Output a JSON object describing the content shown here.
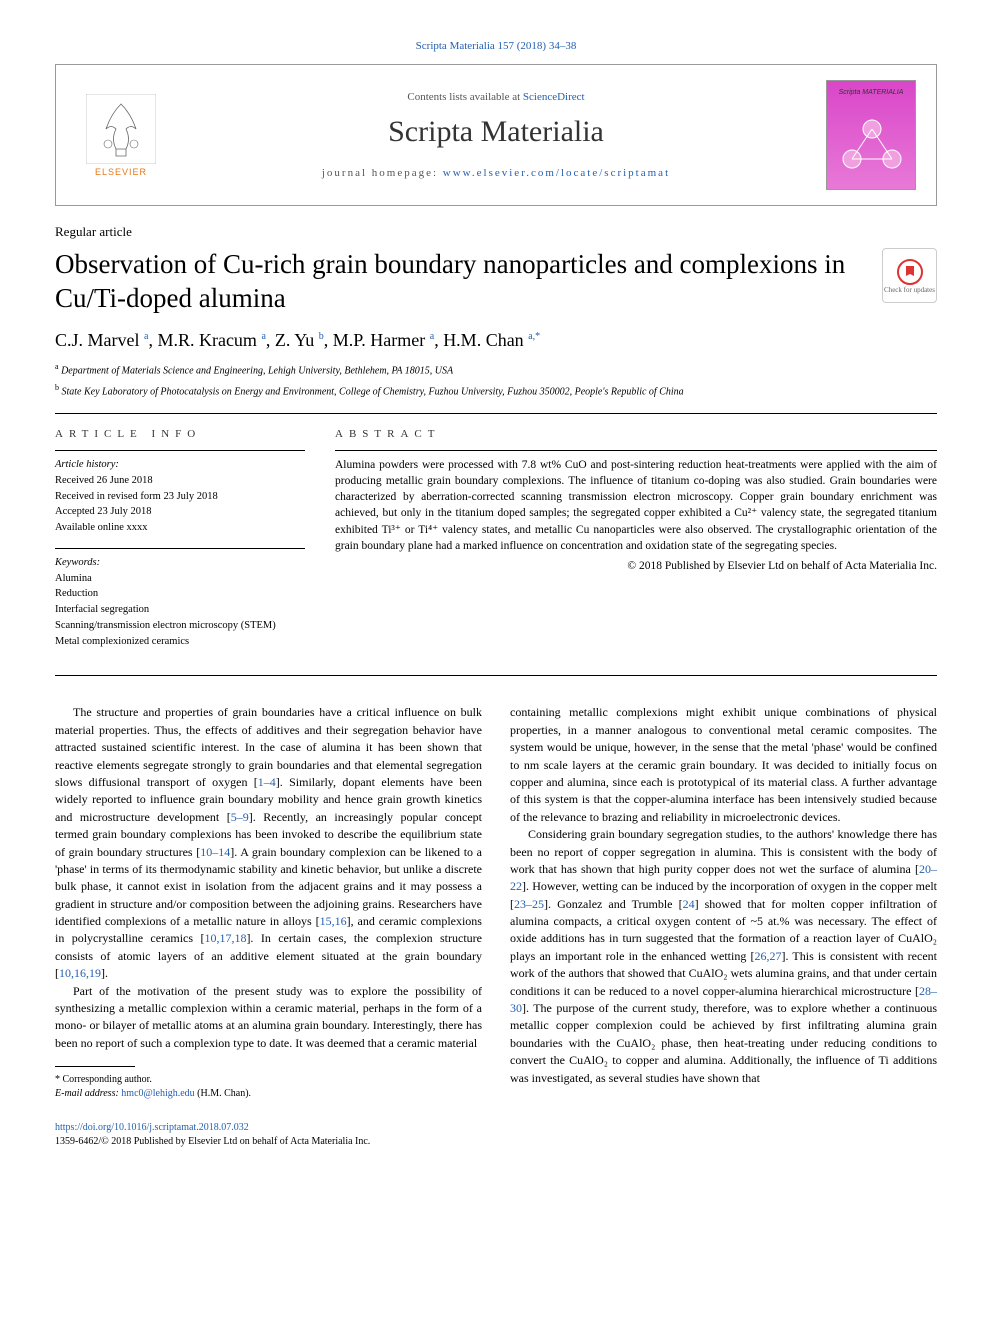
{
  "header": {
    "citation": "Scripta Materialia 157 (2018) 34–38",
    "contents_prefix": "Contents lists available at ",
    "contents_link": "ScienceDirect",
    "journal_name": "Scripta Materialia",
    "homepage_prefix": "journal homepage: ",
    "homepage_link": "www.elsevier.com/locate/scriptamat",
    "publisher_name": "ELSEVIER",
    "cover_title": "Scripta MATERIALIA"
  },
  "article": {
    "type": "Regular article",
    "title": "Observation of Cu-rich grain boundary nanoparticles and complexions in Cu/Ti-doped alumina",
    "updates_text": "Check for updates",
    "authors_html": "C.J. Marvel <sup>a</sup>, M.R. Kracum <sup>a</sup>, Z. Yu <sup>b</sup>, M.P. Harmer <sup>a</sup>, H.M. Chan <sup>a,*</sup>",
    "affiliations": [
      {
        "sup": "a",
        "text": "Department of Materials Science and Engineering, Lehigh University, Bethlehem, PA 18015, USA"
      },
      {
        "sup": "b",
        "text": "State Key Laboratory of Photocatalysis on Energy and Environment, College of Chemistry, Fuzhou University, Fuzhou 350002, People's Republic of China"
      }
    ]
  },
  "info": {
    "heading": "ARTICLE INFO",
    "history_label": "Article history:",
    "history": [
      "Received 26 June 2018",
      "Received in revised form 23 July 2018",
      "Accepted 23 July 2018",
      "Available online xxxx"
    ],
    "keywords_label": "Keywords:",
    "keywords": [
      "Alumina",
      "Reduction",
      "Interfacial segregation",
      "Scanning/transmission electron microscopy (STEM)",
      "Metal complexionized ceramics"
    ]
  },
  "abstract": {
    "heading": "ABSTRACT",
    "text": "Alumina powders were processed with 7.8 wt% CuO and post-sintering reduction heat-treatments were applied with the aim of producing metallic grain boundary complexions. The influence of titanium co-doping was also studied. Grain boundaries were characterized by aberration-corrected scanning transmission electron microscopy. Copper grain boundary enrichment was achieved, but only in the titanium doped samples; the segregated copper exhibited a Cu²⁺ valency state, the segregated titanium exhibited Ti³⁺ or Ti⁴⁺ valency states, and metallic Cu nanoparticles were also observed. The crystallographic orientation of the grain boundary plane had a marked influence on concentration and oxidation state of the segregating species.",
    "copyright": "© 2018 Published by Elsevier Ltd on behalf of Acta Materialia Inc."
  },
  "body": {
    "col1": [
      "The structure and properties of grain boundaries have a critical influence on bulk material properties. Thus, the effects of additives and their segregation behavior have attracted sustained scientific interest. In the case of alumina it has been shown that reactive elements segregate strongly to grain boundaries and that elemental segregation slows diffusional transport of oxygen [<a>1–4</a>]. Similarly, dopant elements have been widely reported to influence grain boundary mobility and hence grain growth kinetics and microstructure development [<a>5–9</a>]. Recently, an increasingly popular concept termed grain boundary complexions has been invoked to describe the equilibrium state of grain boundary structures [<a>10–14</a>]. A grain boundary complexion can be likened to a 'phase' in terms of its thermodynamic stability and kinetic behavior, but unlike a discrete bulk phase, it cannot exist in isolation from the adjacent grains and it may possess a gradient in structure and/or composition between the adjoining grains. Researchers have identified complexions of a metallic nature in alloys [<a>15,16</a>], and ceramic complexions in polycrystalline ceramics [<a>10,17,18</a>]. In certain cases, the complexion structure consists of atomic layers of an additive element situated at the grain boundary [<a>10,16,19</a>].",
      "Part of the motivation of the present study was to explore the possibility of synthesizing a metallic complexion within a ceramic material, perhaps in the form of a mono- or bilayer of metallic atoms at an alumina grain boundary. Interestingly, there has been no report of such a complexion type to date. It was deemed that a ceramic material"
    ],
    "col2": [
      "containing metallic complexions might exhibit unique combinations of physical properties, in a manner analogous to conventional metal ceramic composites. The system would be unique, however, in the sense that the metal 'phase' would be confined to nm scale layers at the ceramic grain boundary. It was decided to initially focus on copper and alumina, since each is prototypical of its material class. A further advantage of this system is that the copper-alumina interface has been intensively studied because of the relevance to brazing and reliability in microelectronic devices.",
      "Considering grain boundary segregation studies, to the authors' knowledge there has been no report of copper segregation in alumina. This is consistent with the body of work that has shown that high purity copper does not wet the surface of alumina [<a>20–22</a>]. However, wetting can be induced by the incorporation of oxygen in the copper melt [<a>23–25</a>]. Gonzalez and Trumble [<a>24</a>] showed that for molten copper infiltration of alumina compacts, a critical oxygen content of ~5 at.% was necessary. The effect of oxide additions has in turn suggested that the formation of a reaction layer of CuAlO₂ plays an important role in the enhanced wetting [<a>26,27</a>]. This is consistent with recent work of the authors that showed that CuAlO₂ wets alumina grains, and that under certain conditions it can be reduced to a novel copper-alumina hierarchical microstructure [<a>28–30</a>]. The purpose of the current study, therefore, was to explore whether a continuous metallic copper complexion could be achieved by first infiltrating alumina grain boundaries with the CuAlO₂ phase, then heat-treating under reducing conditions to convert the CuAlO₂ to copper and alumina. Additionally, the influence of Ti additions was investigated, as several studies have shown that"
    ]
  },
  "footnote": {
    "corr_label": "* Corresponding author.",
    "email_label": "E-mail address: ",
    "email": "hmc0@lehigh.edu",
    "email_name": " (H.M. Chan)."
  },
  "footer": {
    "doi": "https://doi.org/10.1016/j.scriptamat.2018.07.032",
    "issn_line": "1359-6462/© 2018 Published by Elsevier Ltd on behalf of Acta Materialia Inc."
  },
  "colors": {
    "link": "#2560b0",
    "elsevier_orange": "#e67817",
    "cover_magenta": "#d946c8"
  }
}
